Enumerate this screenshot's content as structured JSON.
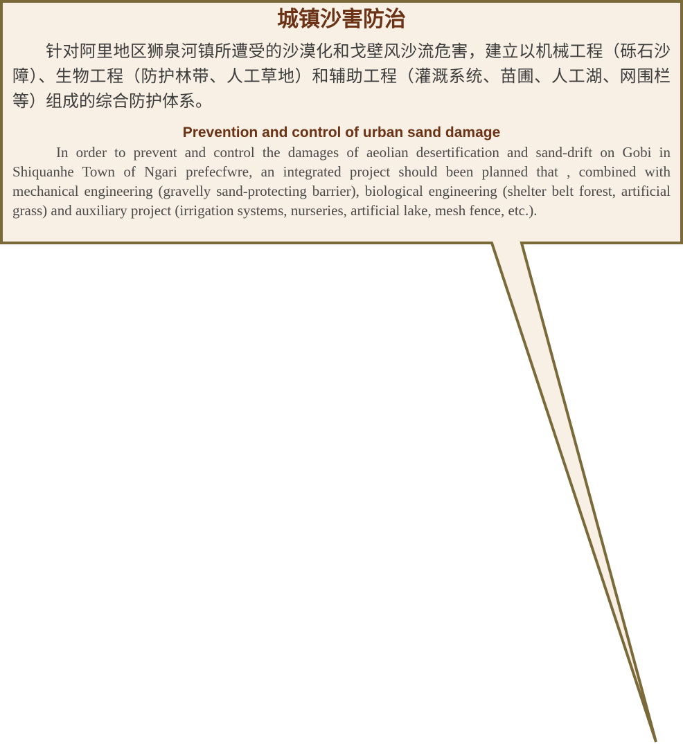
{
  "panel": {
    "zh_title": "城镇沙害防治",
    "zh_body": "针对阿里地区狮泉河镇所遭受的沙漠化和戈壁风沙流危害，建立以机械工程（砾石沙障）、生物工程（防护林带、人工草地）和辅助工程（灌溉系统、苗圃、人工湖、网围栏等）组成的综合防护体系。",
    "en_title": "Prevention and control of urban sand damage",
    "en_body": "In order to prevent and control the damages of aeolian desertification and sand-drift on Gobi in Shiquanhe Town of Ngari prefecfwre, an integrated project should been planned that , combined with mechanical engineering (gravelly sand-protecting barrier), biological engineering (shelter belt forest, artificial grass) and auxiliary project (irrigation systems, nurseries, artificial lake, mesh fence, etc.)."
  },
  "colors": {
    "fill": "#f8f0e4",
    "border": "#7a6a3a",
    "title": "#6b3215",
    "text": "#3d3d3d"
  }
}
